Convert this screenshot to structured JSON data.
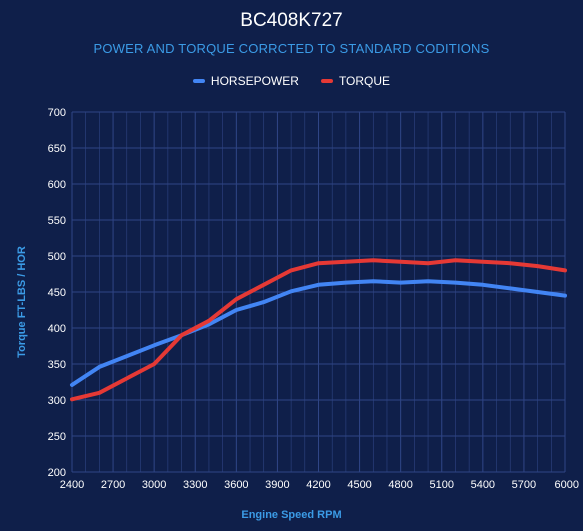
{
  "chart_data": {
    "type": "line",
    "title": "BC408K727",
    "subtitle": "POWER AND TORQUE CORRCTED TO STANDARD CODITIONS",
    "xlabel": "Engine Speed RPM",
    "ylabel": "Torque FT-LBS / HOR",
    "legend_position": "top",
    "grid": true,
    "xlim": [
      2400,
      6000
    ],
    "ylim": [
      200,
      700
    ],
    "x_ticks": [
      2400,
      2700,
      3000,
      3300,
      3600,
      3900,
      4200,
      4500,
      4800,
      5100,
      5400,
      5700,
      6000
    ],
    "y_ticks": [
      200,
      250,
      300,
      350,
      400,
      450,
      500,
      550,
      600,
      650,
      700
    ],
    "x": [
      2400,
      2600,
      2800,
      3000,
      3200,
      3400,
      3600,
      3800,
      4000,
      4200,
      4400,
      4600,
      4800,
      5000,
      5200,
      5400,
      5600,
      5800,
      6000
    ],
    "series": [
      {
        "name": "HORSEPOWER",
        "color": "#4285f4",
        "values": [
          321,
          346,
          361,
          376,
          390,
          405,
          425,
          436,
          451,
          460,
          463,
          465,
          463,
          465,
          463,
          460,
          455,
          450,
          445
        ]
      },
      {
        "name": "TORQUE",
        "color": "#e53935",
        "values": [
          301,
          310,
          330,
          350,
          390,
          410,
          440,
          460,
          480,
          490,
          492,
          494,
          492,
          490,
          494,
          492,
          490,
          486,
          480
        ]
      }
    ]
  },
  "colors": {
    "background": "#0f1f4a",
    "grid": "#2f4585",
    "accent_text": "#3b9be6"
  }
}
